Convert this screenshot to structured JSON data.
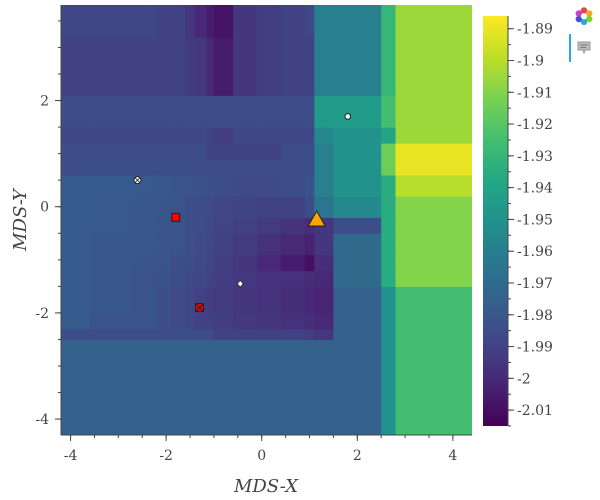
{
  "chart_data": {
    "type": "heatmap",
    "xlabel": "MDS-X",
    "ylabel": "MDS-Y",
    "xlim": [
      -4.2,
      4.4
    ],
    "ylim": [
      -4.3,
      3.8
    ],
    "x_ticks": [
      -4,
      -2,
      0,
      2,
      4
    ],
    "y_ticks": [
      -4,
      -2,
      0,
      2
    ],
    "colorbar": {
      "vmin": -2.015,
      "vmax": -1.886,
      "ticks": [
        -1.89,
        -1.9,
        -1.91,
        -1.92,
        -1.93,
        -1.94,
        -1.95,
        -1.96,
        -1.97,
        -1.98,
        -1.99,
        -2,
        -2.01
      ]
    },
    "colormap": [
      "#440154",
      "#482475",
      "#414487",
      "#355f8d",
      "#2a788e",
      "#21918c",
      "#22a884",
      "#44bf70",
      "#7ad151",
      "#bddf26",
      "#fde725"
    ],
    "grid": {
      "x_edges": [
        -4.2,
        -3.6,
        -2.7,
        -2.2,
        -1.9,
        -1.6,
        -1.4,
        -1.15,
        -1.0,
        -0.6,
        -0.1,
        0.4,
        0.9,
        1.1,
        1.5,
        2.5,
        2.8,
        4.4
      ],
      "y_edges": [
        -4.3,
        -2.5,
        -2.3,
        -2.0,
        -1.7,
        -1.5,
        -1.2,
        -0.9,
        -0.5,
        -0.2,
        0.2,
        0.6,
        0.9,
        1.2,
        1.5,
        2.1,
        3.2,
        3.8
      ],
      "values": [
        [
          -1.975,
          -1.975,
          -1.975,
          -1.975,
          -1.975,
          -1.975,
          -1.975,
          -1.975,
          -1.975,
          -1.975,
          -1.975,
          -1.975,
          -1.975,
          -1.975,
          -1.975,
          -1.95,
          -1.925
        ],
        [
          -1.985,
          -1.985,
          -1.985,
          -1.985,
          -1.985,
          -1.985,
          -1.985,
          -1.985,
          -1.99,
          -1.99,
          -1.99,
          -1.99,
          -1.992,
          -1.995,
          -1.975,
          -1.95,
          -1.925
        ],
        [
          -1.978,
          -1.982,
          -1.982,
          -1.984,
          -1.986,
          -1.988,
          -1.99,
          -1.99,
          -1.992,
          -1.994,
          -1.995,
          -1.997,
          -1.998,
          -2.0,
          -1.975,
          -1.95,
          -1.925
        ],
        [
          -1.978,
          -1.98,
          -1.982,
          -1.984,
          -1.986,
          -1.988,
          -1.99,
          -1.992,
          -1.993,
          -1.995,
          -1.996,
          -1.998,
          -2.0,
          -2.002,
          -1.975,
          -1.95,
          -1.925
        ],
        [
          -1.978,
          -1.98,
          -1.982,
          -1.984,
          -1.986,
          -1.988,
          -1.99,
          -1.992,
          -1.993,
          -1.995,
          -1.996,
          -1.998,
          -2.0,
          -2.002,
          -1.975,
          -1.95,
          -1.925
        ],
        [
          -1.978,
          -1.98,
          -1.982,
          -1.983,
          -1.985,
          -1.987,
          -1.988,
          -1.99,
          -1.992,
          -1.994,
          -1.996,
          -1.997,
          -1.999,
          -2.0,
          -1.97,
          -1.935,
          -1.91
        ],
        [
          -1.978,
          -1.98,
          -1.981,
          -1.982,
          -1.984,
          -1.985,
          -1.987,
          -1.989,
          -1.992,
          -1.995,
          -2.0,
          -2.005,
          -2.01,
          -1.998,
          -1.97,
          -1.935,
          -1.91
        ],
        [
          -1.978,
          -1.98,
          -1.98,
          -1.981,
          -1.982,
          -1.984,
          -1.986,
          -1.988,
          -1.99,
          -1.993,
          -1.997,
          -2.0,
          -2.003,
          -1.995,
          -1.97,
          -1.935,
          -1.91
        ],
        [
          -1.978,
          -1.979,
          -1.98,
          -1.981,
          -1.982,
          -1.984,
          -1.985,
          -1.987,
          -1.989,
          -1.991,
          -1.993,
          -1.996,
          -1.998,
          -1.995,
          -1.985,
          -1.935,
          -1.91
        ],
        [
          -1.978,
          -1.979,
          -1.98,
          -1.981,
          -1.982,
          -1.984,
          -1.985,
          -1.986,
          -1.988,
          -1.989,
          -1.99,
          -1.99,
          -1.985,
          -1.965,
          -1.955,
          -1.935,
          -1.91
        ],
        [
          -1.978,
          -1.978,
          -1.979,
          -1.98,
          -1.981,
          -1.982,
          -1.983,
          -1.984,
          -1.985,
          -1.986,
          -1.986,
          -1.985,
          -1.982,
          -1.96,
          -1.95,
          -1.935,
          -1.9
        ],
        [
          -1.985,
          -1.985,
          -1.985,
          -1.985,
          -1.985,
          -1.985,
          -1.985,
          -1.985,
          -1.985,
          -1.985,
          -1.985,
          -1.985,
          -1.985,
          -1.96,
          -1.95,
          -1.915,
          -1.89
        ],
        [
          -1.985,
          -1.985,
          -1.985,
          -1.985,
          -1.985,
          -1.985,
          -1.985,
          -1.99,
          -1.99,
          -1.99,
          -1.99,
          -1.985,
          -1.985,
          -1.96,
          -1.95,
          -1.915,
          -1.89
        ],
        [
          -1.988,
          -1.988,
          -1.988,
          -1.988,
          -1.988,
          -1.988,
          -1.988,
          -1.99,
          -1.992,
          -1.988,
          -1.988,
          -1.988,
          -1.988,
          -1.955,
          -1.95,
          -1.94,
          -1.905
        ],
        [
          -1.985,
          -1.985,
          -1.985,
          -1.985,
          -1.985,
          -1.985,
          -1.985,
          -1.985,
          -1.985,
          -1.985,
          -1.985,
          -1.985,
          -1.985,
          -1.945,
          -1.945,
          -1.925,
          -1.905
        ],
        [
          -1.99,
          -1.99,
          -1.99,
          -1.99,
          -1.99,
          -1.993,
          -1.995,
          -2.0,
          -2.005,
          -1.995,
          -1.992,
          -1.99,
          -1.99,
          -1.96,
          -1.96,
          -1.93,
          -1.905
        ],
        [
          -1.988,
          -1.988,
          -1.988,
          -1.99,
          -1.99,
          -1.995,
          -2.0,
          -2.005,
          -2.008,
          -1.995,
          -1.992,
          -1.99,
          -1.988,
          -1.96,
          -1.96,
          -1.93,
          -1.905
        ]
      ]
    },
    "markers": [
      {
        "x": 1.15,
        "y": -0.25,
        "shape": "triangle",
        "color": "#ffa500"
      },
      {
        "x": -1.8,
        "y": -0.2,
        "shape": "square",
        "color": "#ff0000"
      },
      {
        "x": -1.3,
        "y": -1.9,
        "shape": "square_x",
        "color": "#ff0000"
      },
      {
        "x": -2.6,
        "y": 0.5,
        "shape": "circle_x",
        "color": "#ffffff"
      },
      {
        "x": -0.45,
        "y": -1.45,
        "shape": "diamond",
        "color": "#ffffff"
      },
      {
        "x": 1.8,
        "y": 1.7,
        "shape": "circle",
        "color": "#ffffff"
      }
    ]
  },
  "toolbar": {
    "tools": [
      {
        "name": "bokeh-logo",
        "icon": "bokeh-logo-icon"
      },
      {
        "name": "hover",
        "icon": "hover-tooltip-icon"
      }
    ]
  }
}
